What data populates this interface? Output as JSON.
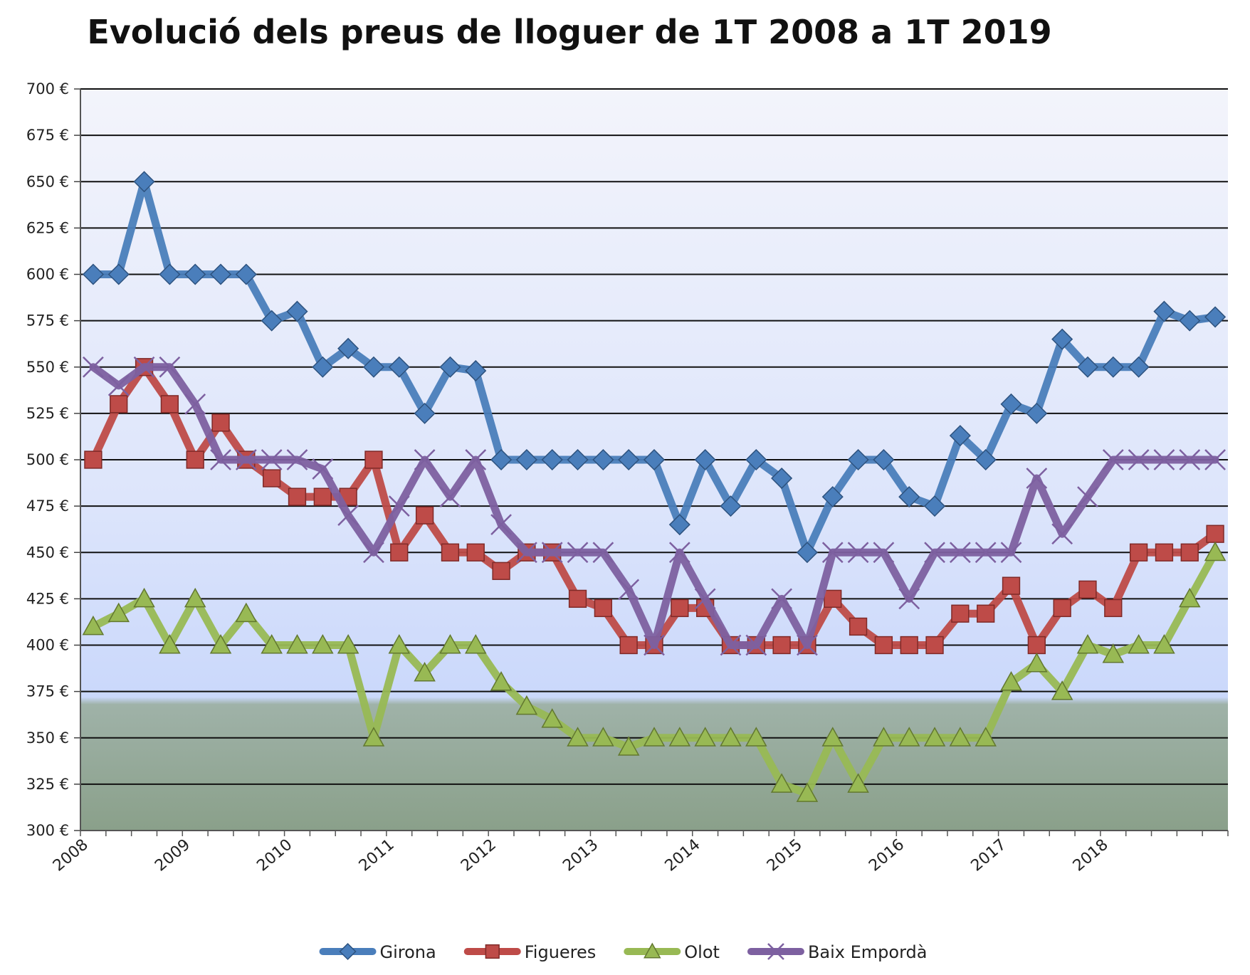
{
  "chart_data": {
    "type": "line",
    "title": "Evolució dels preus de lloguer de 1T 2008 a 1T 2019",
    "xlabel": "",
    "ylabel": "",
    "ylim": [
      300,
      700
    ],
    "ytick_step": 25,
    "y_unit": "€",
    "x_tick_labels": [
      "2008",
      "2009",
      "2010",
      "2011",
      "2012",
      "2013",
      "2014",
      "2015",
      "2016",
      "2017",
      "2018"
    ],
    "quarters": 45,
    "grid": true,
    "legend_position": "bottom",
    "series": [
      {
        "name": "Girona",
        "color": "#4a7ebb",
        "marker": "diamond",
        "values": [
          600,
          600,
          650,
          600,
          600,
          600,
          600,
          575,
          580,
          550,
          560,
          550,
          550,
          525,
          550,
          548,
          500,
          500,
          500,
          500,
          500,
          500,
          500,
          465,
          500,
          475,
          500,
          490,
          450,
          480,
          500,
          500,
          480,
          475,
          513,
          500,
          530,
          525,
          565,
          550,
          550,
          550,
          580,
          575,
          577
        ]
      },
      {
        "name": "Figueres",
        "color": "#be4b48",
        "marker": "square",
        "values": [
          500,
          530,
          550,
          530,
          500,
          520,
          500,
          490,
          480,
          480,
          480,
          500,
          450,
          470,
          450,
          450,
          440,
          450,
          450,
          425,
          420,
          400,
          400,
          420,
          420,
          400,
          400,
          400,
          400,
          425,
          410,
          400,
          400,
          400,
          417,
          417,
          432,
          400,
          420,
          430,
          420,
          450,
          450,
          450,
          460
        ]
      },
      {
        "name": "Olot",
        "color": "#98b954",
        "marker": "triangle",
        "values": [
          410,
          417,
          425,
          400,
          425,
          400,
          417,
          400,
          400,
          400,
          400,
          350,
          400,
          385,
          400,
          400,
          380,
          367,
          360,
          350,
          350,
          345,
          350,
          350,
          350,
          350,
          350,
          325,
          320,
          350,
          325,
          350,
          350,
          350,
          350,
          350,
          380,
          390,
          375,
          400,
          395,
          400,
          400,
          425,
          450
        ]
      },
      {
        "name": "Baix Empordà",
        "color": "#7d60a0",
        "marker": "x",
        "values": [
          550,
          540,
          550,
          550,
          530,
          500,
          500,
          500,
          500,
          495,
          470,
          450,
          475,
          500,
          480,
          500,
          465,
          450,
          450,
          450,
          450,
          430,
          400,
          450,
          425,
          400,
          400,
          425,
          400,
          450,
          450,
          450,
          425,
          450,
          450,
          450,
          450,
          490,
          460,
          480,
          500,
          500,
          500,
          500,
          500
        ]
      }
    ]
  }
}
